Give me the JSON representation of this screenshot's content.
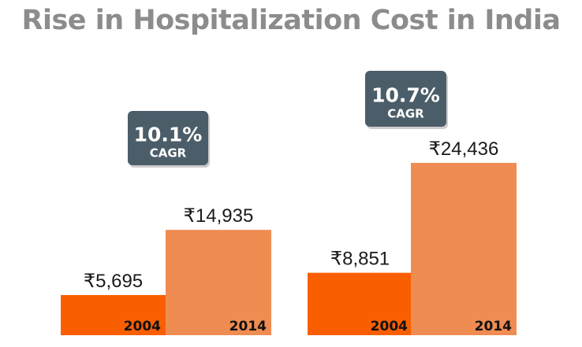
{
  "chart_data": {
    "type": "bar",
    "title": "Rise in Hospitalization Cost in India",
    "categories": [
      "2004",
      "2014"
    ],
    "currency_symbol": "₹",
    "groups": [
      {
        "values": [
          5695,
          14935
        ],
        "labels": [
          "₹5,695",
          "₹14,935"
        ],
        "cagr": "10.1%",
        "cagr_label": "CAGR"
      },
      {
        "values": [
          8851,
          24436
        ],
        "labels": [
          "₹8,851",
          "₹24,436"
        ],
        "cagr": "10.7%",
        "cagr_label": "CAGR"
      }
    ],
    "colors": {
      "2004": "#f95f00",
      "2014": "#ef8c52",
      "badge": "#4b5d69",
      "title": "#8c8c8c"
    },
    "xlabel": "",
    "ylabel": "",
    "ylim": [
      0,
      24436
    ],
    "grid": false,
    "legend": "none"
  }
}
